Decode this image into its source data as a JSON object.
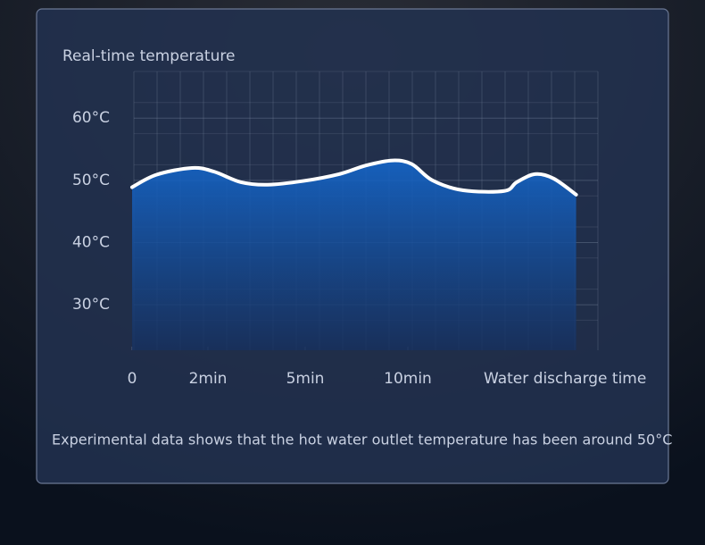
{
  "chart_data": {
    "type": "area",
    "title": "Real-time temperature",
    "x_label": "Water discharge time",
    "note": "Experimental data shows that the hot water outlet temperature has been around 50°C",
    "x": [
      0,
      0.64,
      1.58,
      2.19,
      3.02,
      3.84,
      4.94,
      6.65,
      7.96,
      9.26,
      10.2,
      11.2,
      12.7,
      14.7,
      15.3,
      16.2,
      17.1,
      18.2
    ],
    "values": [
      48.9,
      50.9,
      52.0,
      51.4,
      49.7,
      49.3,
      49.9,
      51.0,
      52.4,
      53.2,
      52.6,
      50.0,
      48.4,
      48.3,
      49.7,
      51.0,
      50.3,
      47.7
    ],
    "color": "#ffffff",
    "fill": "#1565c8",
    "xlim": [
      0,
      19.3
    ],
    "xticks": [
      0,
      {
        "value": 2,
        "label": "2min"
      },
      {
        "value": 5,
        "label": "5min"
      },
      {
        "value": 10,
        "label": "10min"
      }
    ],
    "ylim": [
      22.7,
      67.5
    ],
    "yticks": [
      {
        "value": 30,
        "label": "30°C"
      },
      {
        "value": 40,
        "label": "40°C"
      },
      {
        "value": 50,
        "label": "50°C"
      },
      {
        "value": 60,
        "label": "60°C"
      }
    ],
    "grid": true
  }
}
